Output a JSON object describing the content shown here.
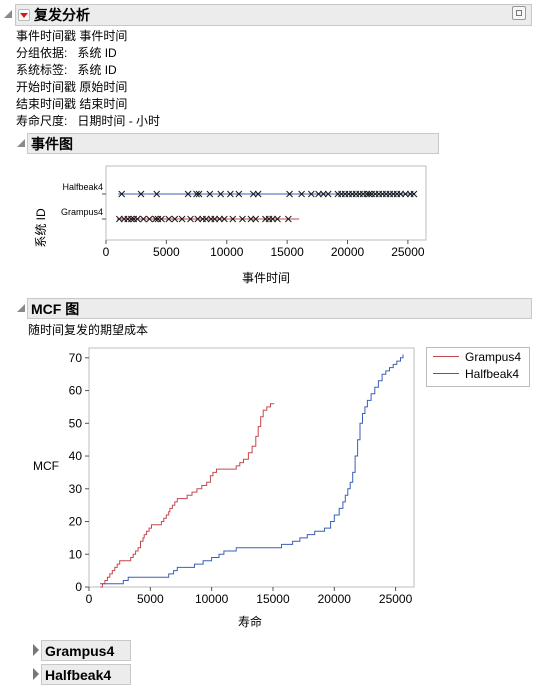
{
  "report": {
    "title": "复发分析",
    "info": [
      {
        "key": "事件时间戳",
        "value": "事件时间"
      },
      {
        "key": "分组依据:",
        "value": "系统 ID"
      },
      {
        "key": "系统标签:",
        "value": "系统 ID"
      },
      {
        "key": "开始时间戳",
        "value": "原始时间"
      },
      {
        "key": "结束时间戳",
        "value": "结束时间"
      },
      {
        "key": "寿命尺度:",
        "value": "日期时间 - 小时"
      }
    ]
  },
  "event_plot": {
    "section_title": "事件图",
    "chart_data": {
      "type": "scatter",
      "xlabel": "事件时间",
      "ylabel": "系统 ID",
      "xlim": [
        0,
        26500
      ],
      "xticks": [
        0,
        5000,
        10000,
        15000,
        20000,
        25000
      ],
      "categories": [
        "Halfbeak4",
        "Grampus4"
      ],
      "series": [
        {
          "name": "Halfbeak4",
          "color": "#3b5fb7",
          "line": [
            1000,
            25600
          ],
          "x": [
            1300,
            2900,
            4200,
            6800,
            7500,
            7700,
            8600,
            9500,
            10300,
            11000,
            12200,
            12600,
            15200,
            16200,
            17000,
            17600,
            18000,
            18400,
            19200,
            19500,
            19800,
            20100,
            20400,
            20700,
            21000,
            21300,
            21600,
            21800,
            22000,
            22300,
            22600,
            22900,
            23200,
            23500,
            23800,
            24100,
            24400,
            24800,
            25200,
            25500
          ]
        },
        {
          "name": "Grampus4",
          "color": "#c3484f",
          "line": [
            900,
            16000
          ],
          "x": [
            1100,
            1500,
            1800,
            2100,
            2300,
            2600,
            3100,
            3600,
            4100,
            4300,
            4600,
            5200,
            5700,
            6300,
            7000,
            7600,
            8000,
            8300,
            8700,
            9000,
            9400,
            9800,
            10500,
            11300,
            12000,
            12400,
            13200,
            13500,
            13800,
            14200,
            15100
          ]
        }
      ]
    }
  },
  "mcf_plot": {
    "section_title": "MCF 图",
    "subtitle": "随时间复发的期望成本",
    "chart_data": {
      "type": "line",
      "step": true,
      "xlabel": "寿命",
      "ylabel": "MCF",
      "xlim": [
        0,
        26500
      ],
      "ylim": [
        0,
        73
      ],
      "xticks": [
        0,
        5000,
        10000,
        15000,
        20000,
        25000
      ],
      "yticks": [
        0,
        10,
        20,
        30,
        40,
        50,
        60,
        70
      ],
      "legend": "right",
      "series": [
        {
          "name": "Grampus4",
          "color": "#c3484f",
          "points": [
            [
              900,
              0
            ],
            [
              1100,
              1
            ],
            [
              1300,
              2
            ],
            [
              1500,
              3
            ],
            [
              1700,
              4
            ],
            [
              1900,
              5
            ],
            [
              2100,
              6
            ],
            [
              2300,
              7
            ],
            [
              2500,
              8
            ],
            [
              3100,
              8
            ],
            [
              3400,
              9
            ],
            [
              3600,
              10
            ],
            [
              3800,
              11
            ],
            [
              4000,
              12
            ],
            [
              4200,
              14
            ],
            [
              4400,
              15
            ],
            [
              4500,
              16
            ],
            [
              4700,
              17
            ],
            [
              4900,
              18
            ],
            [
              5100,
              19
            ],
            [
              5700,
              19
            ],
            [
              5900,
              20
            ],
            [
              6100,
              21
            ],
            [
              6300,
              22
            ],
            [
              6500,
              23
            ],
            [
              6600,
              24
            ],
            [
              6800,
              25
            ],
            [
              7000,
              26
            ],
            [
              7200,
              27
            ],
            [
              7800,
              27
            ],
            [
              8000,
              28
            ],
            [
              8400,
              29
            ],
            [
              8800,
              30
            ],
            [
              9200,
              31
            ],
            [
              9600,
              32
            ],
            [
              9900,
              34
            ],
            [
              10100,
              35
            ],
            [
              10400,
              36
            ],
            [
              11800,
              36
            ],
            [
              12000,
              37
            ],
            [
              12300,
              38
            ],
            [
              12600,
              39
            ],
            [
              13000,
              41
            ],
            [
              13300,
              43
            ],
            [
              13600,
              46
            ],
            [
              13800,
              49
            ],
            [
              14000,
              52
            ],
            [
              14200,
              54
            ],
            [
              14500,
              55
            ],
            [
              14800,
              56
            ],
            [
              15100,
              56
            ]
          ]
        },
        {
          "name": "Halfbeak4",
          "color": "#3b5fb7",
          "points": [
            [
              900,
              1
            ],
            [
              2800,
              2
            ],
            [
              3200,
              3
            ],
            [
              6000,
              3
            ],
            [
              6500,
              4
            ],
            [
              6900,
              5
            ],
            [
              7200,
              6
            ],
            [
              8000,
              6
            ],
            [
              8600,
              7
            ],
            [
              9300,
              8
            ],
            [
              10000,
              9
            ],
            [
              10600,
              10
            ],
            [
              11000,
              11
            ],
            [
              12000,
              12
            ],
            [
              15100,
              12
            ],
            [
              15700,
              13
            ],
            [
              16600,
              14
            ],
            [
              17200,
              15
            ],
            [
              17800,
              16
            ],
            [
              18400,
              17
            ],
            [
              19200,
              18
            ],
            [
              19700,
              20
            ],
            [
              20000,
              22
            ],
            [
              20400,
              24
            ],
            [
              20700,
              26
            ],
            [
              20900,
              28
            ],
            [
              21100,
              30
            ],
            [
              21300,
              32
            ],
            [
              21500,
              35
            ],
            [
              21700,
              40
            ],
            [
              21900,
              45
            ],
            [
              22100,
              50
            ],
            [
              22300,
              53
            ],
            [
              22500,
              55
            ],
            [
              22700,
              57
            ],
            [
              23000,
              59
            ],
            [
              23300,
              61
            ],
            [
              23600,
              63
            ],
            [
              23900,
              65
            ],
            [
              24200,
              66
            ],
            [
              24500,
              67
            ],
            [
              24800,
              68
            ],
            [
              25100,
              69
            ],
            [
              25400,
              70
            ],
            [
              25600,
              71
            ]
          ]
        }
      ]
    }
  },
  "collapsed": [
    {
      "label": "Grampus4"
    },
    {
      "label": "Halfbeak4"
    }
  ]
}
